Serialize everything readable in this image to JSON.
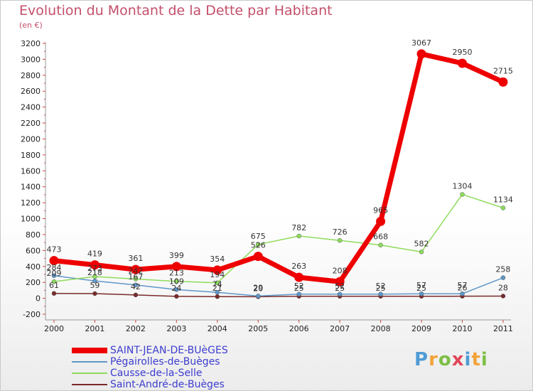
{
  "chart_data": {
    "type": "line",
    "title": "Evolution du Montant de la Dette par Habitant",
    "subtitle": "(en €)",
    "xlabel": "",
    "ylabel": "",
    "categories": [
      "2000",
      "2001",
      "2002",
      "2003",
      "2004",
      "2005",
      "2006",
      "2007",
      "2008",
      "2009",
      "2010",
      "2011"
    ],
    "ylim": [
      -200,
      3200
    ],
    "yticks": [
      -200,
      0,
      200,
      400,
      600,
      800,
      1000,
      1200,
      1400,
      1600,
      1800,
      2000,
      2200,
      2400,
      2600,
      2800,
      3000,
      3200
    ],
    "grid": false,
    "legend_position": "bottom-left",
    "series": [
      {
        "name": "SAINT-JEAN-DE-BUèGES",
        "color": "#ee0000",
        "values": [
          473,
          419,
          361,
          399,
          354,
          526,
          263,
          208,
          965,
          3067,
          2950,
          2715
        ],
        "labels": [
          "473",
          "419",
          "361",
          "399",
          "354",
          "526",
          "263",
          "208",
          "965",
          "3067",
          "2950",
          "2715"
        ]
      },
      {
        "name": "Pégairolles-de-Buèges",
        "color": "#5f97c9",
        "values": [
          284,
          218,
          167,
          109,
          74,
          29,
          52,
          52,
          52,
          57,
          57,
          258
        ],
        "labels": [
          "284",
          "218",
          "167",
          "109",
          "74",
          "29",
          "52",
          "52",
          "52",
          "57",
          "57",
          "258"
        ]
      },
      {
        "name": "Causse-de-la-Selle",
        "color": "#8fdc5c",
        "values": [
          209,
          273,
          242,
          213,
          194,
          675,
          782,
          726,
          668,
          582,
          1304,
          1134
        ],
        "labels": [
          "209",
          "273",
          "242",
          "213",
          "194",
          "675",
          "782",
          "726",
          "668",
          "582",
          "1304",
          "1134"
        ]
      },
      {
        "name": "Saint-André-de-Buèges",
        "color": "#7a2a2a",
        "values": [
          61,
          59,
          42,
          24,
          21,
          20,
          25,
          25,
          25,
          25,
          26,
          28
        ],
        "labels": [
          "61",
          "59",
          "42",
          "24",
          "21",
          "20",
          "25",
          "25",
          "25",
          "25",
          "26",
          "28"
        ]
      }
    ]
  },
  "logo": {
    "text": "Proxiti",
    "letters": [
      "P",
      "r",
      "o",
      "x",
      "i",
      "t",
      "i"
    ],
    "colors": [
      "#4f9bd5",
      "#f2a33a",
      "#7dbf45",
      "#e0465a",
      "#4f9bd5",
      "#f2a33a",
      "#7dbf45"
    ]
  }
}
